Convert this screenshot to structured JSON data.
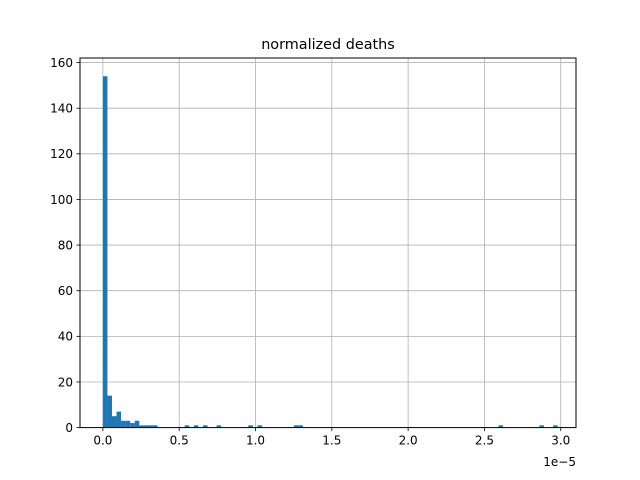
{
  "chart_data": {
    "type": "bar",
    "title": "normalized deaths",
    "xlabel": "",
    "ylabel": "",
    "x_offset_label": "1e−5",
    "xlim": [
      -0.15,
      3.1
    ],
    "ylim": [
      0,
      162
    ],
    "xticks": [
      0.0,
      0.5,
      1.0,
      1.5,
      2.0,
      2.5,
      3.0
    ],
    "xtick_labels": [
      "0.0",
      "0.5",
      "1.0",
      "1.5",
      "2.0",
      "2.5",
      "3.0"
    ],
    "yticks": [
      0,
      20,
      40,
      60,
      80,
      100,
      120,
      140,
      160
    ],
    "ytick_labels": [
      "0",
      "20",
      "40",
      "60",
      "80",
      "100",
      "120",
      "140",
      "160"
    ],
    "grid": true,
    "bar_color": "#1f77b4",
    "bin_width": 0.0298,
    "bins": [
      {
        "x": 0.0,
        "count": 154
      },
      {
        "x": 0.0298,
        "count": 14
      },
      {
        "x": 0.0596,
        "count": 5
      },
      {
        "x": 0.0894,
        "count": 7
      },
      {
        "x": 0.1192,
        "count": 3
      },
      {
        "x": 0.149,
        "count": 3
      },
      {
        "x": 0.1788,
        "count": 2
      },
      {
        "x": 0.2086,
        "count": 3
      },
      {
        "x": 0.2384,
        "count": 1
      },
      {
        "x": 0.2682,
        "count": 1
      },
      {
        "x": 0.298,
        "count": 1
      },
      {
        "x": 0.3278,
        "count": 1
      },
      {
        "x": 0.536,
        "count": 1
      },
      {
        "x": 0.596,
        "count": 1
      },
      {
        "x": 0.656,
        "count": 1
      },
      {
        "x": 0.745,
        "count": 1
      },
      {
        "x": 0.953,
        "count": 1
      },
      {
        "x": 1.013,
        "count": 1
      },
      {
        "x": 1.251,
        "count": 1
      },
      {
        "x": 1.281,
        "count": 1
      },
      {
        "x": 2.592,
        "count": 1
      },
      {
        "x": 2.86,
        "count": 1
      },
      {
        "x": 2.95,
        "count": 1
      }
    ]
  }
}
